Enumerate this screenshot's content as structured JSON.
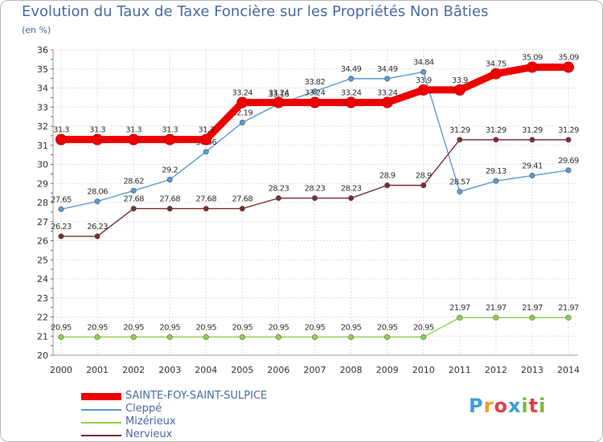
{
  "header": {
    "title": "Evolution du Taux de Taxe Foncière sur les Propriétés Non Bâties",
    "unit": "(en %)"
  },
  "logo": {
    "text": "Proxiti",
    "letters": [
      {
        "ch": "P",
        "color": "#3aa0d8"
      },
      {
        "ch": "r",
        "color": "#f0a020"
      },
      {
        "ch": "o",
        "color": "#e04040"
      },
      {
        "ch": "x",
        "color": "#3aa0d8"
      },
      {
        "ch": "i",
        "color": "#7ab83a"
      },
      {
        "ch": "t",
        "color": "#e04040"
      },
      {
        "ch": "i",
        "color": "#7ab83a"
      }
    ]
  },
  "chart_data": {
    "type": "line",
    "title": "Evolution du Taux de Taxe Foncière sur les Propriétés Non Bâties",
    "ylabel": "(en %)",
    "xlabel": "",
    "ylim": [
      20,
      36
    ],
    "yticks": [
      20,
      21,
      22,
      23,
      24,
      25,
      26,
      27,
      28,
      29,
      30,
      31,
      32,
      33,
      34,
      35,
      36
    ],
    "grid": true,
    "legend_position": "bottom-left",
    "categories": [
      "2000",
      "2001",
      "2002",
      "2003",
      "2004",
      "2005",
      "2006",
      "2007",
      "2008",
      "2009",
      "2010",
      "2011",
      "2012",
      "2013",
      "2014"
    ],
    "series": [
      {
        "name": "SAINTE-FOY-SAINT-SULPICE",
        "color": "#ee0000",
        "highlight": true,
        "values": [
          31.3,
          31.3,
          31.3,
          31.3,
          31.3,
          33.24,
          33.24,
          33.24,
          33.24,
          33.24,
          33.9,
          33.9,
          34.75,
          35.09,
          35.09
        ],
        "labels": [
          "31.3",
          "31.3",
          "31.3",
          "31.3",
          "31.3",
          "33.24",
          "33.24",
          "33.24",
          "33.24",
          "33.24",
          "33.9",
          "33.9",
          "34.75",
          "35.09",
          "35.09"
        ]
      },
      {
        "name": "Cleppé",
        "color": "#5b9bd5",
        "highlight": false,
        "values": [
          27.65,
          28.06,
          28.62,
          29.2,
          30.66,
          32.19,
          33.16,
          33.82,
          34.49,
          34.49,
          34.84,
          28.57,
          29.13,
          29.41,
          29.69
        ],
        "labels": [
          "27.65",
          "28.06",
          "28.62",
          "29.2",
          "30.66",
          "32.19",
          "33.16",
          "33.82",
          "34.49",
          "34.49",
          "34.84",
          "28.57",
          "29.13",
          "29.41",
          "29.69"
        ]
      },
      {
        "name": "Mizérieux",
        "color": "#8fd14f",
        "highlight": false,
        "values": [
          20.95,
          20.95,
          20.95,
          20.95,
          20.95,
          20.95,
          20.95,
          20.95,
          20.95,
          20.95,
          20.95,
          21.97,
          21.97,
          21.97,
          21.97
        ],
        "labels": [
          "20.95",
          "20.95",
          "20.95",
          "20.95",
          "20.95",
          "20.95",
          "20.95",
          "20.95",
          "20.95",
          "20.95",
          "20.95",
          "21.97",
          "21.97",
          "21.97",
          "21.97"
        ]
      },
      {
        "name": "Nervieux",
        "color": "#7a2e2e",
        "highlight": false,
        "values": [
          26.23,
          26.23,
          27.68,
          27.68,
          27.68,
          27.68,
          28.23,
          28.23,
          28.23,
          28.9,
          28.9,
          31.29,
          31.29,
          31.29,
          31.29
        ],
        "labels": [
          "26.23",
          "26.23",
          "27.68",
          "27.68",
          "27.68",
          "27.68",
          "28.23",
          "28.23",
          "28.23",
          "28.9",
          "28.9",
          "31.29",
          "31.29",
          "31.29",
          "31.29"
        ]
      }
    ]
  }
}
